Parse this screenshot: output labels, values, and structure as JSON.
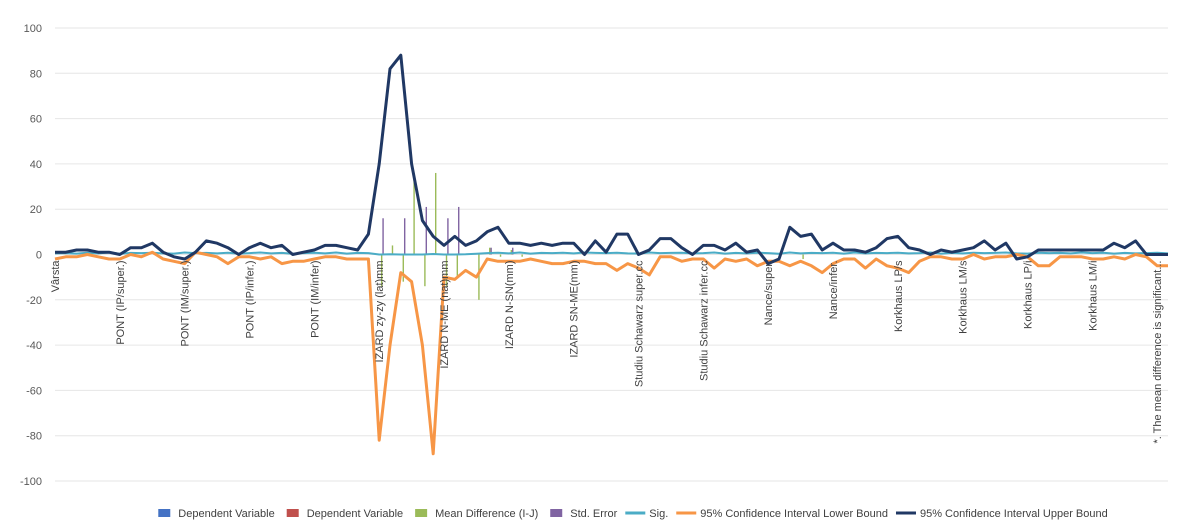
{
  "chart_data": {
    "type": "line",
    "ylim": [
      -100,
      100
    ],
    "yticks": [
      -100,
      -80,
      -60,
      -40,
      -20,
      0,
      20,
      40,
      60,
      80,
      100
    ],
    "grid": true,
    "legend_position": "bottom",
    "category_labels": [
      {
        "index": 0,
        "label": "Vârsta"
      },
      {
        "index": 6,
        "label": "PONT (IP/super.)"
      },
      {
        "index": 12,
        "label": "PONT (IM/super.)"
      },
      {
        "index": 18,
        "label": "PONT (IP/infer.)"
      },
      {
        "index": 24,
        "label": "PONT (IM/infer)"
      },
      {
        "index": 30,
        "label": "IZARD zy-zy (lat)mm"
      },
      {
        "index": 36,
        "label": "IZARD N-ME (nat)mm"
      },
      {
        "index": 42,
        "label": "IZARD N-SN(mm)"
      },
      {
        "index": 48,
        "label": "IZARD SN-ME(mm)"
      },
      {
        "index": 54,
        "label": "Studiu  Schawarz super.cc"
      },
      {
        "index": 60,
        "label": "Studiu  Schawarz infer.cc"
      },
      {
        "index": 66,
        "label": "Nance/super."
      },
      {
        "index": 72,
        "label": "Nance/infer."
      },
      {
        "index": 78,
        "label": "Korkhaus LP/s"
      },
      {
        "index": 84,
        "label": "Korkhaus LM/s"
      },
      {
        "index": 90,
        "label": "Korkhaus LP/i"
      },
      {
        "index": 96,
        "label": "Korkhaus LM/i"
      },
      {
        "index": 102,
        "label": "*. The mean difference is significant..."
      }
    ],
    "series": [
      {
        "name": "Dependent Variable",
        "color": "#4472c4",
        "kind": "bar",
        "values": []
      },
      {
        "name": "Dependent Variable",
        "color": "#c0504d",
        "kind": "bar",
        "values": []
      },
      {
        "name": "Mean Difference (I-J)",
        "color": "#9bbb59",
        "kind": "bar",
        "values": [
          0,
          0,
          0,
          0,
          0,
          0,
          0,
          0,
          0,
          0,
          0,
          0,
          0,
          0,
          0,
          0,
          0,
          0,
          0,
          0,
          0,
          0,
          0,
          0,
          0,
          0,
          0,
          0,
          0,
          0,
          -14,
          4,
          -12,
          36,
          -14,
          36,
          -14,
          -10,
          0,
          -20,
          3,
          -1,
          2,
          -1,
          0,
          0,
          0,
          0,
          0,
          0,
          0,
          0,
          0,
          0,
          0,
          0,
          0,
          0,
          0,
          0,
          0,
          0,
          0,
          0,
          0,
          0,
          0,
          0,
          0,
          -2,
          0,
          0,
          0,
          0,
          0,
          0,
          0,
          0,
          0,
          0,
          0,
          0,
          0,
          0,
          0,
          0,
          0,
          0,
          0,
          0,
          0,
          0,
          0,
          0,
          0,
          0,
          0,
          0,
          0,
          0,
          0,
          0,
          0,
          0
        ]
      },
      {
        "name": "Std. Error",
        "color": "#8064a2",
        "kind": "bar",
        "values": [
          0,
          0,
          0,
          0,
          0,
          0,
          0,
          0,
          0,
          0,
          0,
          0,
          0,
          0,
          0,
          0,
          0,
          0,
          0,
          0,
          0,
          0,
          0,
          0,
          0,
          0,
          0,
          0,
          0,
          0,
          16,
          0,
          16,
          0,
          21,
          0,
          16,
          21,
          0,
          0,
          3,
          0,
          3,
          0,
          0,
          0,
          0,
          0,
          0,
          0,
          0,
          0,
          0,
          0,
          0,
          0,
          0,
          0,
          0,
          0,
          0,
          0,
          0,
          0,
          0,
          0,
          0,
          0,
          0,
          0,
          0,
          0,
          0,
          0,
          0,
          0,
          0,
          0,
          0,
          0,
          0,
          0,
          0,
          0,
          0,
          0,
          0,
          0,
          0,
          0,
          0,
          0,
          0,
          0,
          0,
          0,
          0,
          0,
          0,
          0,
          0,
          0,
          0,
          0
        ]
      },
      {
        "name": "Sig.",
        "color": "#4bacc6",
        "kind": "line",
        "values": [
          0.5,
          0.6,
          0.4,
          0.8,
          0.5,
          0.9,
          0.3,
          0.7,
          0.6,
          0.8,
          0.5,
          0.4,
          0.9,
          0.6,
          0.7,
          0.5,
          0.8,
          0.4,
          0.6,
          0.9,
          0.5,
          0.7,
          0.3,
          0.6,
          0.8,
          0.5,
          0.9,
          0.4,
          0.7,
          0.6,
          0.0,
          0.1,
          0.0,
          0.0,
          0.0,
          0.2,
          0.0,
          0.0,
          0.1,
          0.3,
          0.6,
          0.8,
          0.5,
          0.9,
          0.4,
          0.7,
          0.6,
          0.8,
          0.5,
          0.9,
          0.7,
          0.6,
          0.8,
          0.5,
          0.4,
          0.9,
          0.6,
          0.7,
          0.8,
          0.5,
          0.6,
          0.9,
          0.4,
          0.7,
          0.5,
          0.8,
          0.6,
          0.3,
          0.9,
          0.5,
          0.7,
          0.6,
          0.8,
          0.4,
          0.9,
          0.5,
          0.7,
          0.6,
          0.8,
          0.5,
          0.6,
          0.9,
          0.4,
          0.7,
          0.5,
          0.8,
          0.6,
          0.7,
          0.9,
          0.5,
          0.4,
          0.8,
          0.6,
          0.7,
          0.5,
          0.9,
          0.6,
          0.8,
          0.4,
          0.7,
          0.5,
          0.6,
          0.8,
          0.5
        ]
      },
      {
        "name": "95% Confidence Interval Lower Bound",
        "color": "#f79646",
        "kind": "line",
        "values": [
          -2,
          -1,
          -1,
          0,
          -1,
          -2,
          -2,
          0,
          -1,
          1,
          -2,
          -3,
          -4,
          1,
          0,
          -1,
          -4,
          -1,
          -1,
          -2,
          -1,
          -4,
          -3,
          -3,
          -2,
          -1,
          -1,
          -2,
          -2,
          -2,
          -82,
          -40,
          -8,
          -12,
          -40,
          -88,
          -10,
          -11,
          -7,
          -10,
          -2,
          -3,
          -3,
          -3,
          -2,
          -3,
          -4,
          -4,
          -3,
          -3,
          -4,
          -4,
          -7,
          -4,
          -6,
          -9,
          -1,
          -1,
          -3,
          -2,
          -2,
          -6,
          -2,
          -3,
          -2,
          -5,
          -3,
          -3,
          -5,
          -3,
          -5,
          -8,
          -4,
          -2,
          -2,
          -6,
          -2,
          -5,
          -6,
          -8,
          -3,
          -1,
          -1,
          -2,
          -2,
          0,
          -2,
          -1,
          -1,
          0,
          -1,
          -5,
          -5,
          -1,
          -1,
          -1,
          -2,
          -2,
          -1,
          -2,
          0,
          -1,
          -5,
          -5
        ]
      },
      {
        "name": "95% Confidence Interval Upper Bound",
        "color": "#203864",
        "kind": "line",
        "values": [
          1,
          1,
          2,
          2,
          1,
          1,
          0,
          3,
          3,
          5,
          1,
          -1,
          -2,
          1,
          6,
          5,
          3,
          0,
          3,
          5,
          3,
          4,
          0,
          1,
          2,
          4,
          4,
          3,
          2,
          9,
          40,
          82,
          88,
          40,
          15,
          8,
          4,
          8,
          4,
          6,
          10,
          12,
          5,
          5,
          4,
          5,
          4,
          5,
          5,
          0,
          6,
          1,
          9,
          9,
          0,
          2,
          7,
          7,
          3,
          0,
          4,
          4,
          2,
          5,
          1,
          2,
          -4,
          -2,
          12,
          8,
          9,
          2,
          5,
          2,
          2,
          1,
          3,
          7,
          8,
          3,
          2,
          0,
          2,
          1,
          2,
          3,
          6,
          2,
          5,
          -2,
          -1,
          2,
          2,
          2,
          2,
          2,
          2,
          2,
          5,
          3,
          6,
          0,
          0,
          0
        ]
      }
    ]
  }
}
